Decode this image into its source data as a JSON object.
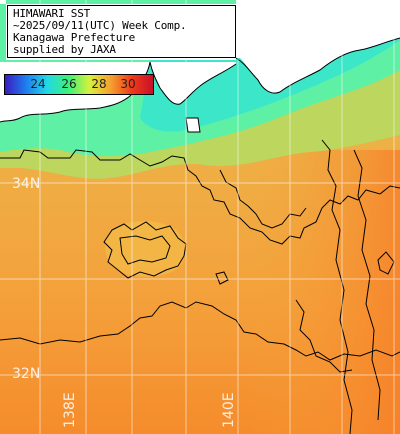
{
  "title_lines": [
    "HIMAWARI SST",
    "~2025/09/11(UTC) Week Comp.",
    "Kanagawa Prefecture",
    "supplied by JAXA"
  ],
  "legend": {
    "ticks": [
      "24",
      "26",
      "28",
      "30"
    ],
    "colors": [
      "#3a1cc0",
      "#1f7ef0",
      "#22d8e6",
      "#3cf07a",
      "#d8f03c",
      "#f5a030",
      "#f03a18",
      "#c8102a"
    ]
  },
  "lat_labels": [
    "34N",
    "32N"
  ],
  "lon_labels": [
    "138E",
    "140E"
  ],
  "colors": {
    "land": "#ffffff",
    "coast_water": "#5ef0a4",
    "mid_water": "#c8d85a",
    "open_ocean": "#f2a63a",
    "warm_ocean": "#f58a2a",
    "contour": "#000000",
    "grid": "#ffffff"
  }
}
